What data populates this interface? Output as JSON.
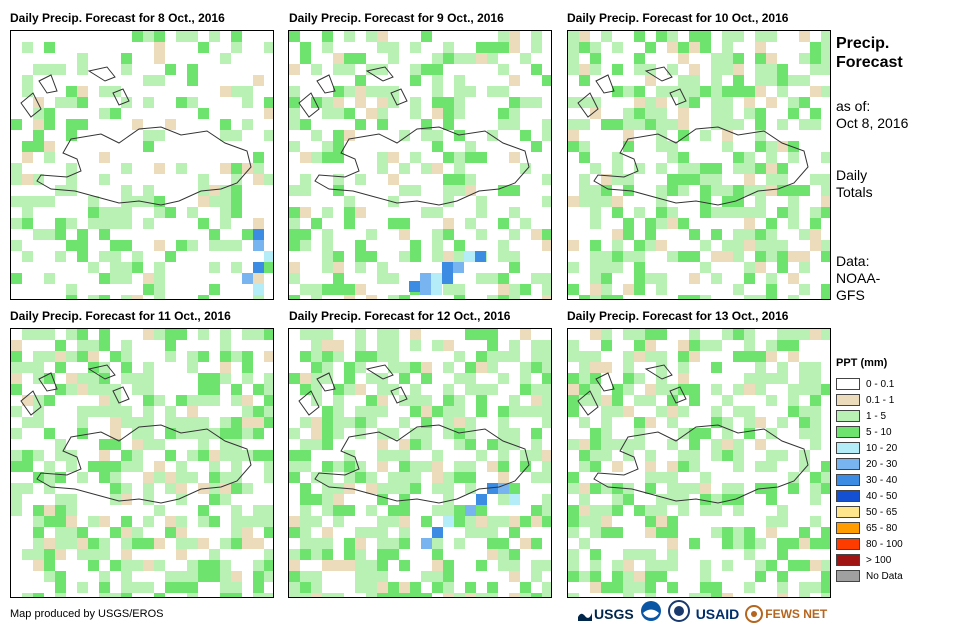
{
  "panels": [
    {
      "title": "Daily Precip. Forecast for 8 Oct., 2016",
      "seed": 8,
      "wet": 0.35,
      "heavy": "se"
    },
    {
      "title": "Daily Precip. Forecast for 9 Oct., 2016",
      "seed": 9,
      "wet": 0.42,
      "heavy": "south"
    },
    {
      "title": "Daily Precip. Forecast for 10 Oct., 2016",
      "seed": 10,
      "wet": 0.55,
      "heavy": "none"
    },
    {
      "title": "Daily Precip. Forecast for 11 Oct., 2016",
      "seed": 11,
      "wet": 0.58,
      "heavy": "none"
    },
    {
      "title": "Daily Precip. Forecast for 12 Oct., 2016",
      "seed": 12,
      "wet": 0.6,
      "heavy": "east"
    },
    {
      "title": "Daily Precip. Forecast for 13 Oct., 2016",
      "seed": 13,
      "wet": 0.55,
      "heavy": "none"
    }
  ],
  "side": {
    "title_line1": "Precip.",
    "title_line2": "Forecast",
    "asof_label": "as of:",
    "asof_date": "Oct 8, 2016",
    "totals_line1": "Daily",
    "totals_line2": "Totals",
    "data_label": "Data:",
    "data_line1": "NOAA-",
    "data_line2": "GFS"
  },
  "legend": {
    "title": "PPT (mm)",
    "items": [
      {
        "label": "0 - 0.1",
        "color": "#ffffff"
      },
      {
        "label": "0.1 - 1",
        "color": "#ecdcbc"
      },
      {
        "label": "1 - 5",
        "color": "#b9f0b4"
      },
      {
        "label": "5 - 10",
        "color": "#6ee46e"
      },
      {
        "label": "10 - 20",
        "color": "#b4ecf7"
      },
      {
        "label": "20 - 30",
        "color": "#78b4ef"
      },
      {
        "label": "30 - 40",
        "color": "#3c8ce4"
      },
      {
        "label": "40 - 50",
        "color": "#1450d2"
      },
      {
        "label": "50 - 65",
        "color": "#ffe68c"
      },
      {
        "label": "65 - 80",
        "color": "#ff9c00"
      },
      {
        "label": "80 - 100",
        "color": "#ff3c00"
      },
      {
        "label": "> 100",
        "color": "#a01414"
      },
      {
        "label": "No Data",
        "color": "#a0a0a0"
      }
    ]
  },
  "footer": {
    "credit": "Map produced by USGS/EROS"
  },
  "logos": {
    "usgs": "USGS",
    "usaid": "USAID",
    "fewsnet": "FEWS NET"
  }
}
